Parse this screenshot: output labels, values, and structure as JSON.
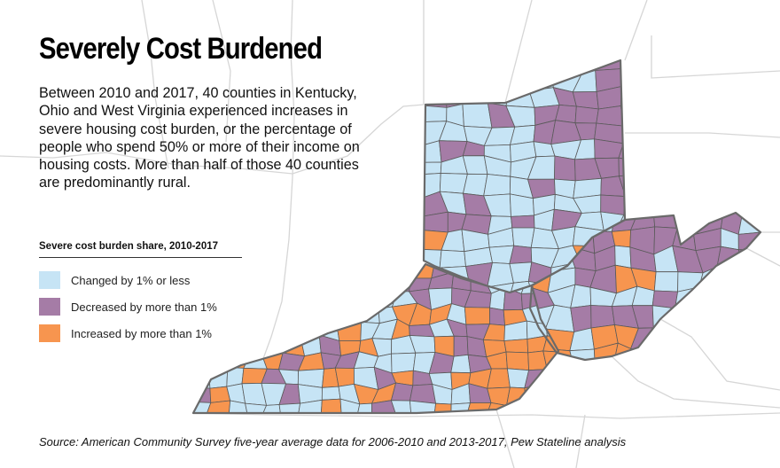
{
  "title": "Severely Cost Burdened",
  "description": "Between 2010 and 2017, 40 counties in Kentucky, Ohio and West Virginia experienced increases in severe housing cost burden, or the percentage of people who spend 50% or more of their income on housing costs. More than half of those 40 counties are predominantly rural.",
  "legend": {
    "title": "Severe cost burden share, 2010-2017",
    "items": [
      {
        "label": "Changed by 1% or less",
        "color": "#c6e4f5"
      },
      {
        "label": "Decreased by more than 1%",
        "color": "#a57ca6"
      },
      {
        "label": "Increased by more than 1%",
        "color": "#f7954f"
      }
    ]
  },
  "source": "Source: American Community Survey five-year average data for 2006-2010 and 2013-2017, Pew Stateline analysis",
  "map_style": {
    "county_border": "#5a5a5a",
    "state_border": "#6a6a6a",
    "background_state_lines": "#d8d8d8"
  }
}
